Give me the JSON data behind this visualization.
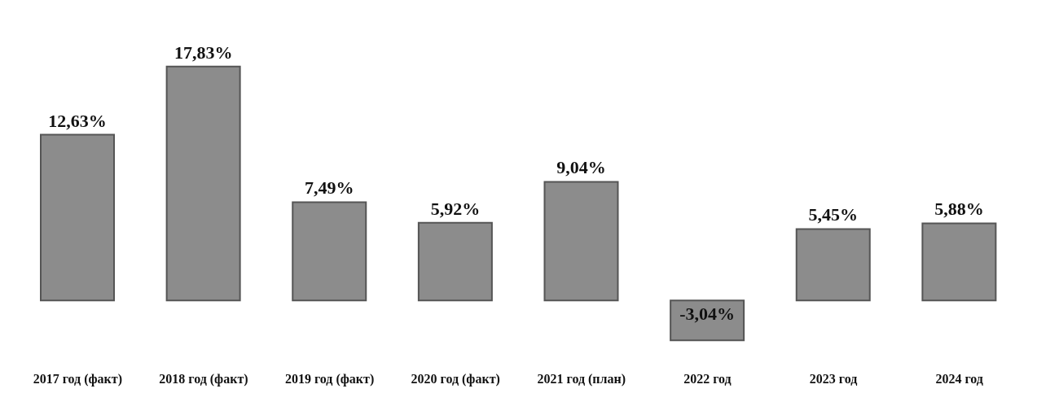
{
  "chart_data": {
    "type": "bar",
    "categories": [
      "2017 год (факт)",
      "2018 год (факт)",
      "2019 год (факт)",
      "2020 год (факт)",
      "2021 год (план)",
      "2022 год",
      "2023 год",
      "2024 год"
    ],
    "values": [
      12.63,
      17.83,
      7.49,
      5.92,
      9.04,
      -3.04,
      5.45,
      5.88
    ],
    "value_labels": [
      "12,63%",
      "17,83%",
      "7,49%",
      "5,92%",
      "9,04%",
      "-3,04%",
      "5,45%",
      "5,88%"
    ],
    "color": "#8c8c8c",
    "grid": false,
    "legend": false
  }
}
